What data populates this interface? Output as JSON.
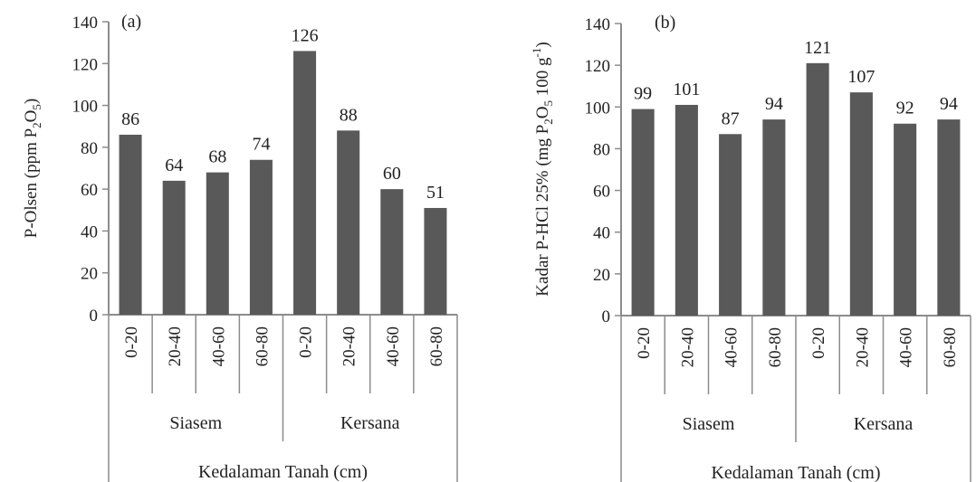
{
  "chart_data": [
    {
      "type": "bar",
      "panel_label": "(a)",
      "ylabel_parts": [
        "P-Olsen (ppm P",
        "2",
        "O",
        "5",
        ")"
      ],
      "xlabel": "Kedalaman Tanah (cm)",
      "categories": [
        "0-20",
        "20-40",
        "40-60",
        "60-80",
        "0-20",
        "20-40",
        "40-60",
        "60-80"
      ],
      "groups": [
        {
          "name": "Siasem",
          "start": 0,
          "count": 4
        },
        {
          "name": "Kersana",
          "start": 4,
          "count": 4
        }
      ],
      "values": [
        86,
        64,
        68,
        74,
        126,
        88,
        60,
        51
      ],
      "ylim": [
        0,
        140
      ],
      "yticks": [
        0,
        20,
        40,
        60,
        80,
        100,
        120,
        140
      ],
      "bar_color": "#595959",
      "grid": false
    },
    {
      "type": "bar",
      "panel_label": "(b)",
      "ylabel_parts": [
        "Kadar P-HCl 25% (mg P",
        "2",
        "O",
        "5",
        " 100 g",
        "-1",
        ")"
      ],
      "xlabel": "Kedalaman Tanah (cm)",
      "categories": [
        "0-20",
        "20-40",
        "40-60",
        "60-80",
        "0-20",
        "20-40",
        "40-60",
        "60-80"
      ],
      "groups": [
        {
          "name": "Siasem",
          "start": 0,
          "count": 4
        },
        {
          "name": "Kersana",
          "start": 4,
          "count": 4
        }
      ],
      "values": [
        99,
        101,
        87,
        94,
        121,
        107,
        92,
        94
      ],
      "ylim": [
        0,
        140
      ],
      "yticks": [
        0,
        20,
        40,
        60,
        80,
        100,
        120,
        140
      ],
      "bar_color": "#595959",
      "grid": false
    }
  ]
}
